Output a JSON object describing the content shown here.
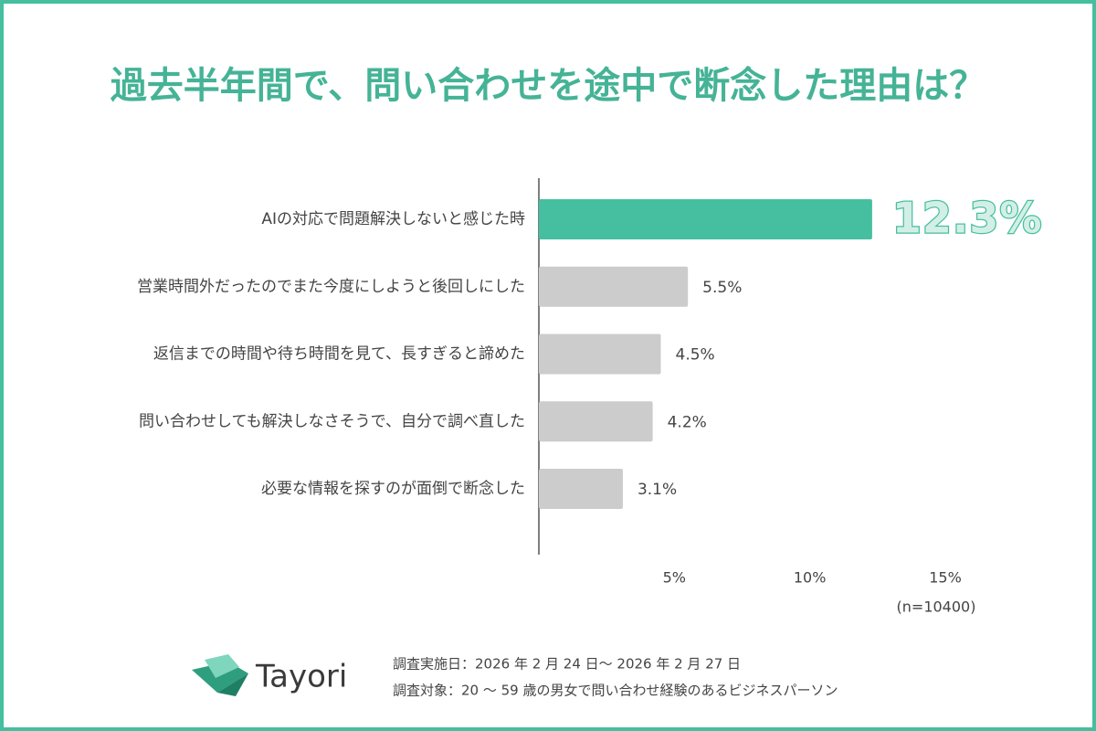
{
  "chart_data": {
    "type": "barh",
    "title": "過去半年間で、問い合わせを途中で断念した理由は？",
    "categories": [
      "AIの対応で問題解決しないと感じた時",
      "営業時間外だったのでまた今度にしようと後回しにした",
      "返信までの時間や待ち時間を見て、長すぎると諦めた",
      "問い合わせしても解決しなさそうで、自分で調べ直した",
      "必要な情報を探すのが面倒で断念した"
    ],
    "values": [
      12.3,
      5.5,
      4.5,
      4.2,
      3.1
    ],
    "value_labels": [
      "12.3%",
      "5.5%",
      "4.5%",
      "4.2%",
      "3.1%"
    ],
    "colors": [
      "#45bf9f",
      "#cccccc",
      "#cccccc",
      "#cccccc",
      "#cccccc"
    ],
    "xlim": [
      0,
      15
    ],
    "xticks": [
      {
        "value": 5,
        "label": "5%"
      },
      {
        "value": 10,
        "label": "10%"
      },
      {
        "value": 15,
        "label": "15%"
      }
    ],
    "grid": false,
    "note": "(n=10400)"
  },
  "logo": "Tayori",
  "survey_date": "調査実施日：2026 年 2 月 24 日〜 2026 年 2 月 27 日",
  "survey_target": "調査対象：20 〜 59 歳の男女で問い合わせ経験のあるビジネスパーソン"
}
